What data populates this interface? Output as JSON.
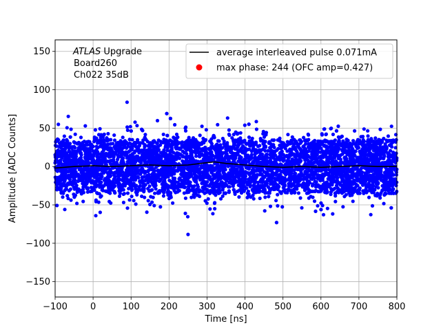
{
  "chart_data": {
    "type": "scatter",
    "title": "",
    "xlabel": "Time [ns]",
    "ylabel": "Amplitude [ADC Counts]",
    "xlim": [
      -100,
      800
    ],
    "ylim": [
      -170,
      165
    ],
    "xticks": [
      -100,
      0,
      100,
      200,
      300,
      400,
      500,
      600,
      700,
      800
    ],
    "yticks": [
      -150,
      -100,
      -50,
      0,
      50,
      100,
      150
    ],
    "grid": true,
    "legend_position": "top-right",
    "annotation": {
      "italic": "ATLAS",
      "line1_rest": " Upgrade",
      "line2": "Board260",
      "line3": "Ch022 35dB"
    },
    "series": [
      {
        "name": "average interleaved pulse 0.071mA",
        "kind": "line",
        "color": "#000000",
        "x": [
          -100,
          -50,
          0,
          50,
          100,
          150,
          200,
          250,
          300,
          320,
          350,
          400,
          450,
          500,
          550,
          600,
          650,
          700,
          750,
          800
        ],
        "y": [
          -2,
          0,
          1,
          0,
          1,
          2,
          1,
          2,
          5,
          6,
          4,
          2,
          0,
          -1,
          0,
          -1,
          0,
          1,
          0,
          0
        ]
      },
      {
        "name": "max phase: 244 (OFC amp=0.427)",
        "kind": "scatter",
        "color": "#0000ff",
        "legend_marker_color": "#ff0000",
        "distribution": "noise",
        "x_range": [
          -100,
          800
        ],
        "center": 0,
        "core_halfwidth": 35,
        "sigma": 22,
        "max_abs_y": 125
      }
    ]
  }
}
